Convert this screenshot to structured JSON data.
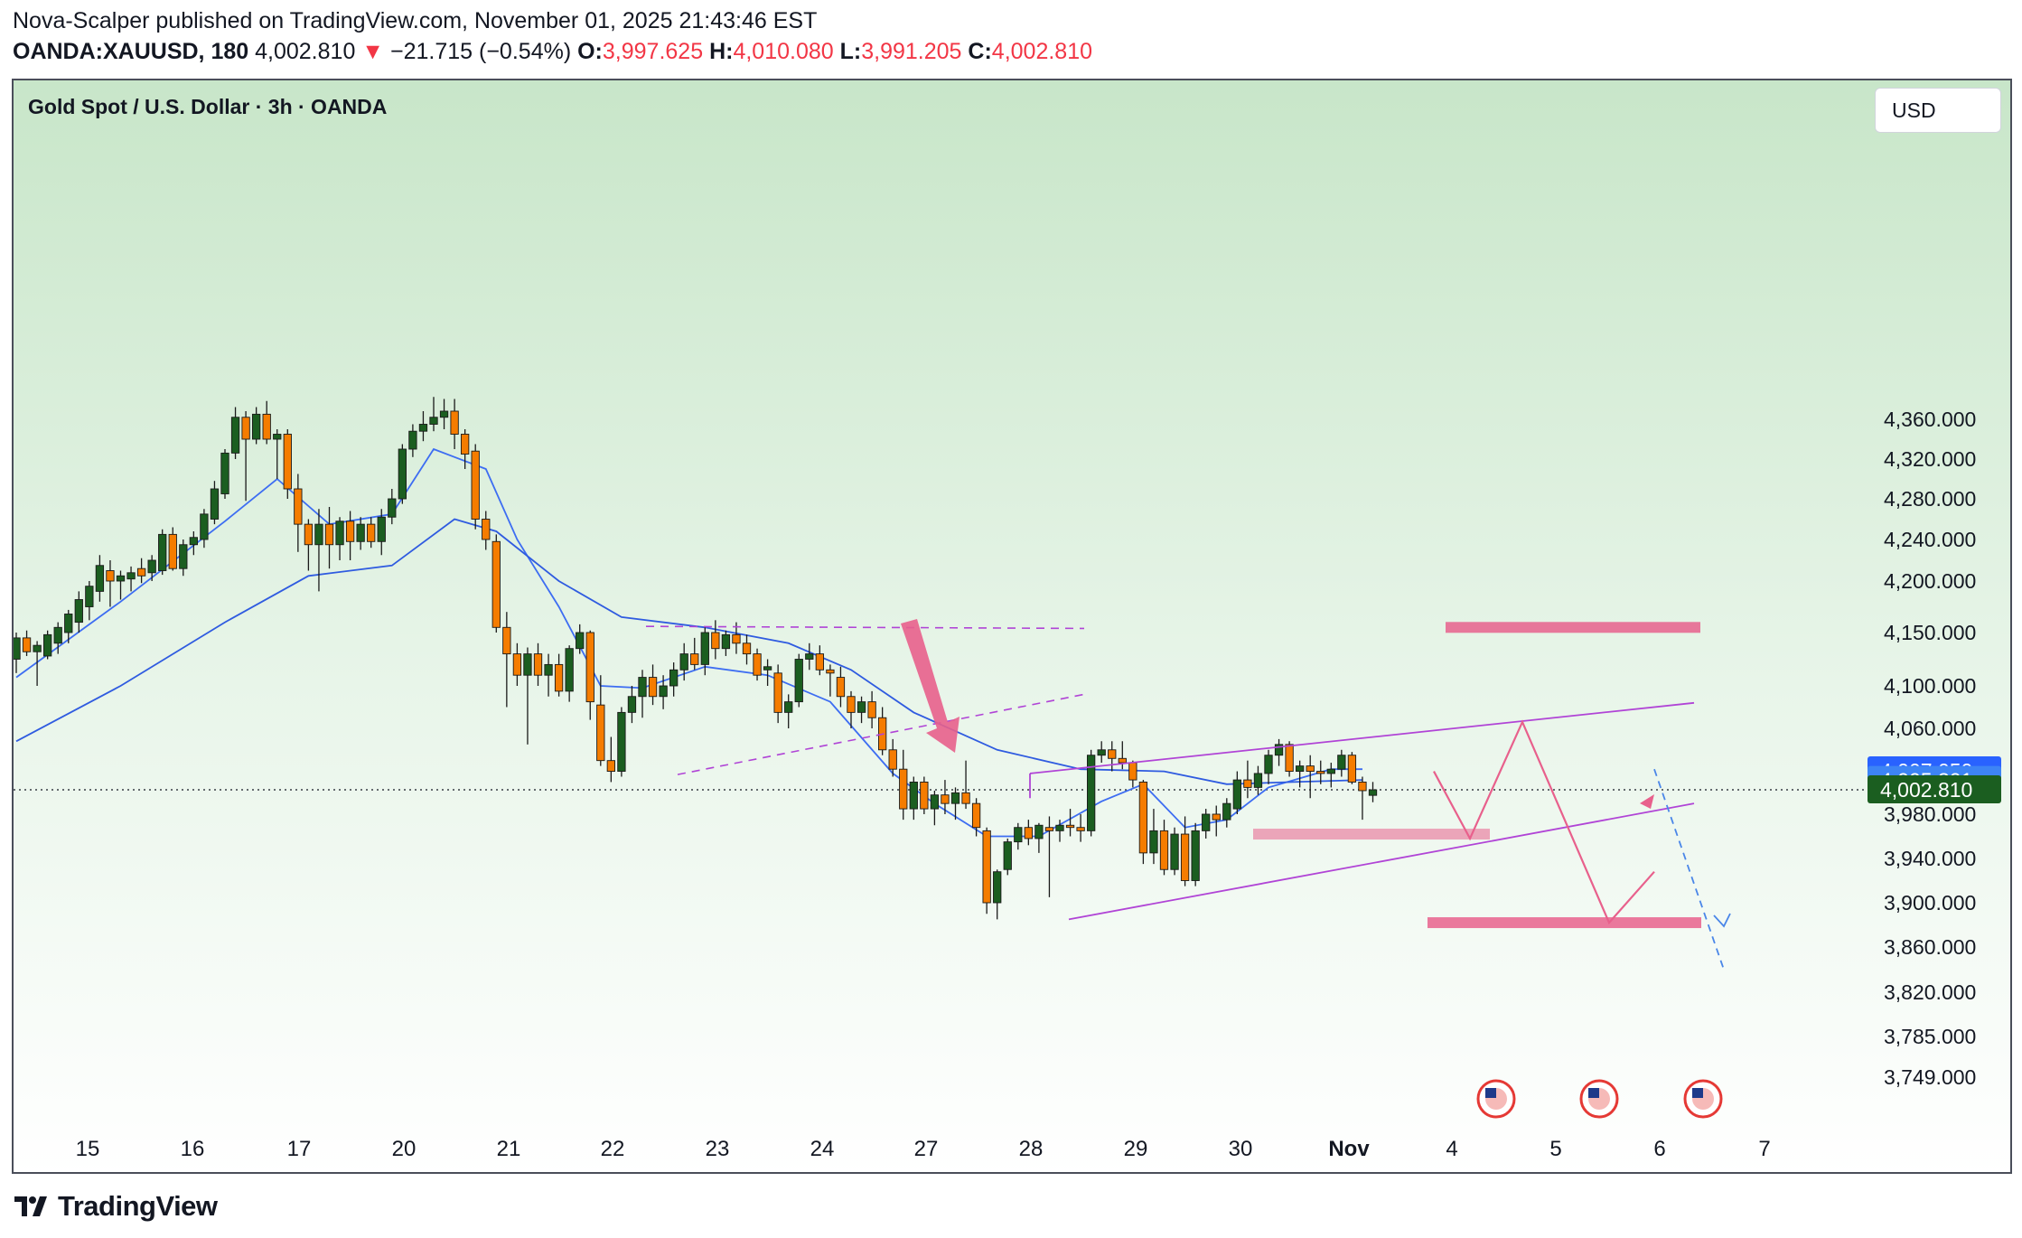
{
  "header": {
    "line1": "Nova-Scalper published on TradingView.com, November 01, 2025 21:43:46 EST",
    "symbol": "OANDA:XAUUSD, 180",
    "last": "4,002.810",
    "change": "−21.715 (−0.54%)",
    "o_label": "O:",
    "o_value": "3,997.625",
    "h_label": "H:",
    "h_value": "4,010.080",
    "l_label": "L:",
    "l_value": "3,991.205",
    "c_label": "C:",
    "c_value": "4,002.810",
    "arrow_icon": "triangle-down-icon"
  },
  "chart_title": "Gold Spot / U.S. Dollar · 3h · OANDA",
  "currency_button": "USD",
  "footer": {
    "brand": "TradingView",
    "logo_icon": "tradingview-logo-icon"
  },
  "colors": {
    "bull": "#1b5e20",
    "bear": "#f57c00",
    "ma_fast": "#3d6df2",
    "ma_slow": "#2f5be0",
    "channel": "#b044d6",
    "pink": "#e8608c",
    "blue_dashed": "#4a86e8",
    "price_last": "#1b5e20",
    "price_ma1": "#2962ff",
    "price_ma2": "#3d84f5",
    "bg_top": "#c8e6c9"
  },
  "chart_data": {
    "type": "candlestick",
    "title": "Gold Spot / U.S. Dollar · 3h · OANDA",
    "currency": "USD",
    "y_ticks": [
      "4,360.000",
      "4,320.000",
      "4,280.000",
      "4,240.000",
      "4,200.000",
      "4,150.000",
      "4,100.000",
      "4,060.000",
      "3,980.000",
      "3,940.000",
      "3,900.000",
      "3,860.000",
      "3,820.000",
      "3,785.000",
      "3,749.000"
    ],
    "x_ticks": [
      "15",
      "16",
      "17",
      "20",
      "21",
      "22",
      "23",
      "24",
      "27",
      "28",
      "29",
      "30",
      "Nov",
      "4",
      "5",
      "6",
      "7"
    ],
    "price_labels": [
      {
        "name": "ma-1",
        "value": "4,007.050"
      },
      {
        "name": "ma-2",
        "value": "4,005.301"
      },
      {
        "name": "last-price",
        "value": "4,002.810"
      }
    ],
    "last_price": 4002.81,
    "candles": [
      {
        "o": 4125,
        "h": 4150,
        "l": 4112,
        "c": 4145
      },
      {
        "o": 4145,
        "h": 4152,
        "l": 4128,
        "c": 4132
      },
      {
        "o": 4132,
        "h": 4142,
        "l": 4100,
        "c": 4138
      },
      {
        "o": 4128,
        "h": 4152,
        "l": 4125,
        "c": 4148
      },
      {
        "o": 4140,
        "h": 4160,
        "l": 4130,
        "c": 4155
      },
      {
        "o": 4150,
        "h": 4172,
        "l": 4140,
        "c": 4168
      },
      {
        "o": 4160,
        "h": 4190,
        "l": 4150,
        "c": 4182
      },
      {
        "o": 4175,
        "h": 4200,
        "l": 4162,
        "c": 4195
      },
      {
        "o": 4190,
        "h": 4225,
        "l": 4180,
        "c": 4215
      },
      {
        "o": 4210,
        "h": 4220,
        "l": 4175,
        "c": 4200
      },
      {
        "o": 4200,
        "h": 4210,
        "l": 4182,
        "c": 4205
      },
      {
        "o": 4202,
        "h": 4214,
        "l": 4190,
        "c": 4208
      },
      {
        "o": 4212,
        "h": 4222,
        "l": 4198,
        "c": 4205
      },
      {
        "o": 4208,
        "h": 4225,
        "l": 4200,
        "c": 4220
      },
      {
        "o": 4210,
        "h": 4250,
        "l": 4206,
        "c": 4245
      },
      {
        "o": 4245,
        "h": 4252,
        "l": 4210,
        "c": 4212
      },
      {
        "o": 4212,
        "h": 4240,
        "l": 4205,
        "c": 4235
      },
      {
        "o": 4235,
        "h": 4248,
        "l": 4225,
        "c": 4242
      },
      {
        "o": 4240,
        "h": 4270,
        "l": 4232,
        "c": 4265
      },
      {
        "o": 4260,
        "h": 4298,
        "l": 4255,
        "c": 4290
      },
      {
        "o": 4285,
        "h": 4330,
        "l": 4280,
        "c": 4326
      },
      {
        "o": 4326,
        "h": 4372,
        "l": 4320,
        "c": 4362
      },
      {
        "o": 4362,
        "h": 4368,
        "l": 4278,
        "c": 4340
      },
      {
        "o": 4340,
        "h": 4372,
        "l": 4335,
        "c": 4365
      },
      {
        "o": 4365,
        "h": 4378,
        "l": 4335,
        "c": 4340
      },
      {
        "o": 4340,
        "h": 4350,
        "l": 4300,
        "c": 4345
      },
      {
        "o": 4345,
        "h": 4350,
        "l": 4280,
        "c": 4290
      },
      {
        "o": 4290,
        "h": 4305,
        "l": 4228,
        "c": 4255
      },
      {
        "o": 4255,
        "h": 4260,
        "l": 4210,
        "c": 4235
      },
      {
        "o": 4235,
        "h": 4270,
        "l": 4190,
        "c": 4255
      },
      {
        "o": 4255,
        "h": 4272,
        "l": 4212,
        "c": 4235
      },
      {
        "o": 4235,
        "h": 4262,
        "l": 4220,
        "c": 4258
      },
      {
        "o": 4258,
        "h": 4268,
        "l": 4220,
        "c": 4238
      },
      {
        "o": 4238,
        "h": 4262,
        "l": 4230,
        "c": 4255
      },
      {
        "o": 4255,
        "h": 4262,
        "l": 4232,
        "c": 4238
      },
      {
        "o": 4238,
        "h": 4270,
        "l": 4225,
        "c": 4262
      },
      {
        "o": 4262,
        "h": 4290,
        "l": 4255,
        "c": 4280
      },
      {
        "o": 4280,
        "h": 4335,
        "l": 4275,
        "c": 4330
      },
      {
        "o": 4330,
        "h": 4355,
        "l": 4322,
        "c": 4348
      },
      {
        "o": 4348,
        "h": 4368,
        "l": 4338,
        "c": 4355
      },
      {
        "o": 4355,
        "h": 4382,
        "l": 4348,
        "c": 4362
      },
      {
        "o": 4362,
        "h": 4380,
        "l": 4350,
        "c": 4368
      },
      {
        "o": 4368,
        "h": 4380,
        "l": 4330,
        "c": 4345
      },
      {
        "o": 4345,
        "h": 4350,
        "l": 4310,
        "c": 4325
      },
      {
        "o": 4328,
        "h": 4335,
        "l": 4250,
        "c": 4260
      },
      {
        "o": 4260,
        "h": 4268,
        "l": 4230,
        "c": 4240
      },
      {
        "o": 4238,
        "h": 4245,
        "l": 4150,
        "c": 4155
      },
      {
        "o": 4155,
        "h": 4170,
        "l": 4080,
        "c": 4130
      },
      {
        "o": 4130,
        "h": 4140,
        "l": 4100,
        "c": 4110
      },
      {
        "o": 4110,
        "h": 4136,
        "l": 4045,
        "c": 4130
      },
      {
        "o": 4130,
        "h": 4140,
        "l": 4100,
        "c": 4110
      },
      {
        "o": 4110,
        "h": 4130,
        "l": 4090,
        "c": 4120
      },
      {
        "o": 4120,
        "h": 4130,
        "l": 4090,
        "c": 4095
      },
      {
        "o": 4095,
        "h": 4138,
        "l": 4085,
        "c": 4135
      },
      {
        "o": 4135,
        "h": 4158,
        "l": 4130,
        "c": 4150
      },
      {
        "o": 4150,
        "h": 4152,
        "l": 4068,
        "c": 4085
      },
      {
        "o": 4082,
        "h": 4110,
        "l": 4025,
        "c": 4030
      },
      {
        "o": 4030,
        "h": 4052,
        "l": 4010,
        "c": 4020
      },
      {
        "o": 4020,
        "h": 4080,
        "l": 4015,
        "c": 4075
      },
      {
        "o": 4075,
        "h": 4100,
        "l": 4065,
        "c": 4090
      },
      {
        "o": 4090,
        "h": 4115,
        "l": 4070,
        "c": 4108
      },
      {
        "o": 4108,
        "h": 4120,
        "l": 4082,
        "c": 4090
      },
      {
        "o": 4090,
        "h": 4110,
        "l": 4078,
        "c": 4100
      },
      {
        "o": 4100,
        "h": 4122,
        "l": 4090,
        "c": 4115
      },
      {
        "o": 4115,
        "h": 4140,
        "l": 4105,
        "c": 4130
      },
      {
        "o": 4130,
        "h": 4145,
        "l": 4115,
        "c": 4120
      },
      {
        "o": 4120,
        "h": 4155,
        "l": 4110,
        "c": 4150
      },
      {
        "o": 4150,
        "h": 4162,
        "l": 4125,
        "c": 4135
      },
      {
        "o": 4135,
        "h": 4152,
        "l": 4128,
        "c": 4148
      },
      {
        "o": 4148,
        "h": 4160,
        "l": 4130,
        "c": 4140
      },
      {
        "o": 4140,
        "h": 4148,
        "l": 4120,
        "c": 4130
      },
      {
        "o": 4130,
        "h": 4135,
        "l": 4105,
        "c": 4110
      },
      {
        "o": 4115,
        "h": 4125,
        "l": 4100,
        "c": 4118
      },
      {
        "o": 4112,
        "h": 4120,
        "l": 4065,
        "c": 4075
      },
      {
        "o": 4075,
        "h": 4092,
        "l": 4060,
        "c": 4085
      },
      {
        "o": 4085,
        "h": 4130,
        "l": 4080,
        "c": 4125
      },
      {
        "o": 4125,
        "h": 4140,
        "l": 4115,
        "c": 4130
      },
      {
        "o": 4130,
        "h": 4138,
        "l": 4110,
        "c": 4115
      },
      {
        "o": 4115,
        "h": 4120,
        "l": 4090,
        "c": 4112
      },
      {
        "o": 4108,
        "h": 4118,
        "l": 4080,
        "c": 4090
      },
      {
        "o": 4090,
        "h": 4095,
        "l": 4060,
        "c": 4075
      },
      {
        "o": 4075,
        "h": 4090,
        "l": 4065,
        "c": 4085
      },
      {
        "o": 4085,
        "h": 4095,
        "l": 4060,
        "c": 4070
      },
      {
        "o": 4070,
        "h": 4080,
        "l": 4035,
        "c": 4040
      },
      {
        "o": 4040,
        "h": 4050,
        "l": 4015,
        "c": 4022
      },
      {
        "o": 4022,
        "h": 4040,
        "l": 3975,
        "c": 3985
      },
      {
        "o": 3985,
        "h": 4015,
        "l": 3975,
        "c": 4010
      },
      {
        "o": 4010,
        "h": 4015,
        "l": 3980,
        "c": 3985
      },
      {
        "o": 3985,
        "h": 4002,
        "l": 3970,
        "c": 3998
      },
      {
        "o": 3998,
        "h": 4012,
        "l": 3980,
        "c": 3990
      },
      {
        "o": 3990,
        "h": 4005,
        "l": 3975,
        "c": 4000
      },
      {
        "o": 4000,
        "h": 4030,
        "l": 3985,
        "c": 3990
      },
      {
        "o": 3990,
        "h": 3995,
        "l": 3960,
        "c": 3968
      },
      {
        "o": 3965,
        "h": 3968,
        "l": 3890,
        "c": 3900
      },
      {
        "o": 3900,
        "h": 3930,
        "l": 3885,
        "c": 3928
      },
      {
        "o": 3930,
        "h": 3958,
        "l": 3925,
        "c": 3955
      },
      {
        "o": 3955,
        "h": 3972,
        "l": 3948,
        "c": 3968
      },
      {
        "o": 3968,
        "h": 3975,
        "l": 3952,
        "c": 3958
      },
      {
        "o": 3958,
        "h": 3972,
        "l": 3945,
        "c": 3970
      },
      {
        "o": 3968,
        "h": 3978,
        "l": 3905,
        "c": 3965
      },
      {
        "o": 3965,
        "h": 3975,
        "l": 3955,
        "c": 3970
      },
      {
        "o": 3970,
        "h": 3985,
        "l": 3960,
        "c": 3968
      },
      {
        "o": 3968,
        "h": 3980,
        "l": 3955,
        "c": 3965
      },
      {
        "o": 3965,
        "h": 4040,
        "l": 3960,
        "c": 4035
      },
      {
        "o": 4035,
        "h": 4048,
        "l": 4028,
        "c": 4040
      },
      {
        "o": 4040,
        "h": 4048,
        "l": 4020,
        "c": 4032
      },
      {
        "o": 4032,
        "h": 4048,
        "l": 4022,
        "c": 4028
      },
      {
        "o": 4028,
        "h": 4030,
        "l": 4005,
        "c": 4012
      },
      {
        "o": 4010,
        "h": 4012,
        "l": 3935,
        "c": 3945
      },
      {
        "o": 3945,
        "h": 3985,
        "l": 3935,
        "c": 3965
      },
      {
        "o": 3965,
        "h": 3975,
        "l": 3925,
        "c": 3930
      },
      {
        "o": 3930,
        "h": 3968,
        "l": 3925,
        "c": 3962
      },
      {
        "o": 3962,
        "h": 3978,
        "l": 3915,
        "c": 3920
      },
      {
        "o": 3920,
        "h": 3972,
        "l": 3915,
        "c": 3965
      },
      {
        "o": 3965,
        "h": 3985,
        "l": 3958,
        "c": 3980
      },
      {
        "o": 3980,
        "h": 3988,
        "l": 3960,
        "c": 3975
      },
      {
        "o": 3975,
        "h": 3995,
        "l": 3968,
        "c": 3990
      },
      {
        "o": 3985,
        "h": 4020,
        "l": 3980,
        "c": 4012
      },
      {
        "o": 4012,
        "h": 4030,
        "l": 3995,
        "c": 4005
      },
      {
        "o": 4005,
        "h": 4025,
        "l": 3998,
        "c": 4018
      },
      {
        "o": 4018,
        "h": 4040,
        "l": 4008,
        "c": 4035
      },
      {
        "o": 4035,
        "h": 4050,
        "l": 4025,
        "c": 4045
      },
      {
        "o": 4045,
        "h": 4048,
        "l": 4015,
        "c": 4020
      },
      {
        "o": 4020,
        "h": 4030,
        "l": 4005,
        "c": 4025
      },
      {
        "o": 4025,
        "h": 4035,
        "l": 3995,
        "c": 4020
      },
      {
        "o": 4020,
        "h": 4030,
        "l": 4008,
        "c": 4018
      },
      {
        "o": 4018,
        "h": 4028,
        "l": 4005,
        "c": 4022
      },
      {
        "o": 4022,
        "h": 4040,
        "l": 4015,
        "c": 4035
      },
      {
        "o": 4035,
        "h": 4038,
        "l": 4008,
        "c": 4010
      },
      {
        "o": 4010,
        "h": 4015,
        "l": 3975,
        "c": 4002
      },
      {
        "o": 3997.6,
        "h": 4010.1,
        "l": 3991.2,
        "c": 4002.8
      }
    ],
    "moving_averages": [
      {
        "name": "ma-fast",
        "color": "#3d6df2",
        "points": [
          [
            0,
            4108
          ],
          [
            10,
            4180
          ],
          [
            20,
            4258
          ],
          [
            25,
            4300
          ],
          [
            30,
            4255
          ],
          [
            36,
            4265
          ],
          [
            40,
            4330
          ],
          [
            45,
            4310
          ],
          [
            48,
            4240
          ],
          [
            52,
            4175
          ],
          [
            56,
            4100
          ],
          [
            60,
            4098
          ],
          [
            66,
            4118
          ],
          [
            72,
            4110
          ],
          [
            78,
            4085
          ],
          [
            84,
            4018
          ],
          [
            88,
            3990
          ],
          [
            93,
            3960
          ],
          [
            98,
            3960
          ],
          [
            104,
            3992
          ],
          [
            108,
            4008
          ],
          [
            112,
            3968
          ],
          [
            116,
            3975
          ],
          [
            120,
            4005
          ],
          [
            126,
            4022
          ],
          [
            129,
            4022
          ]
        ]
      },
      {
        "name": "ma-slow",
        "color": "#2f5be0",
        "points": [
          [
            0,
            4048
          ],
          [
            10,
            4100
          ],
          [
            20,
            4160
          ],
          [
            28,
            4205
          ],
          [
            36,
            4215
          ],
          [
            42,
            4260
          ],
          [
            46,
            4248
          ],
          [
            52,
            4200
          ],
          [
            58,
            4165
          ],
          [
            66,
            4155
          ],
          [
            74,
            4140
          ],
          [
            80,
            4115
          ],
          [
            86,
            4075
          ],
          [
            94,
            4040
          ],
          [
            102,
            4022
          ],
          [
            110,
            4020
          ],
          [
            116,
            4008
          ],
          [
            122,
            4010
          ],
          [
            129,
            4012
          ]
        ]
      }
    ]
  }
}
